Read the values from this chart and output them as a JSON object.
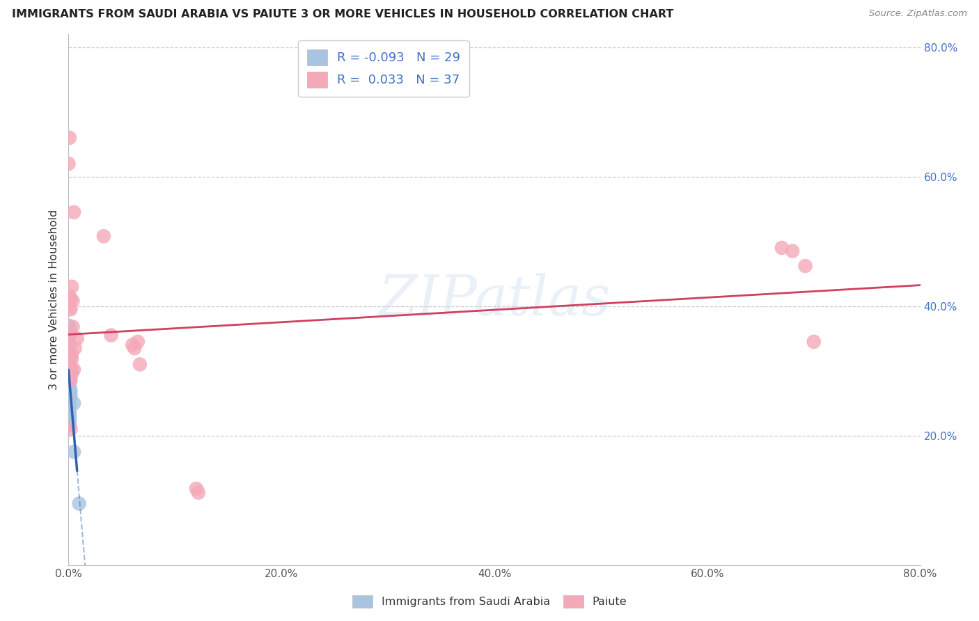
{
  "title": "IMMIGRANTS FROM SAUDI ARABIA VS PAIUTE 3 OR MORE VEHICLES IN HOUSEHOLD CORRELATION CHART",
  "source": "Source: ZipAtlas.com",
  "ylabel": "3 or more Vehicles in Household",
  "legend_label1": "Immigrants from Saudi Arabia",
  "legend_label2": "Paiute",
  "R1": -0.093,
  "N1": 29,
  "R2": 0.033,
  "N2": 37,
  "color1": "#a8c4e0",
  "color2": "#f4a8b8",
  "line1_color": "#3060b0",
  "line2_color": "#d04060",
  "watermark": "ZIPatlas",
  "blue_scatter": [
    [
      0.0,
      0.37
    ],
    [
      0.0,
      0.355
    ],
    [
      0.0,
      0.345
    ],
    [
      0.0,
      0.335
    ],
    [
      0.001,
      0.365
    ],
    [
      0.001,
      0.31
    ],
    [
      0.001,
      0.295
    ],
    [
      0.001,
      0.285
    ],
    [
      0.001,
      0.275
    ],
    [
      0.001,
      0.265
    ],
    [
      0.001,
      0.258
    ],
    [
      0.001,
      0.252
    ],
    [
      0.001,
      0.248
    ],
    [
      0.001,
      0.244
    ],
    [
      0.001,
      0.24
    ],
    [
      0.001,
      0.236
    ],
    [
      0.001,
      0.232
    ],
    [
      0.001,
      0.228
    ],
    [
      0.001,
      0.224
    ],
    [
      0.001,
      0.22
    ],
    [
      0.001,
      0.216
    ],
    [
      0.002,
      0.358
    ],
    [
      0.002,
      0.3
    ],
    [
      0.002,
      0.27
    ],
    [
      0.002,
      0.262
    ],
    [
      0.003,
      0.295
    ],
    [
      0.005,
      0.175
    ],
    [
      0.005,
      0.25
    ],
    [
      0.01,
      0.095
    ]
  ],
  "pink_scatter": [
    [
      0.0,
      0.62
    ],
    [
      0.001,
      0.66
    ],
    [
      0.001,
      0.415
    ],
    [
      0.001,
      0.398
    ],
    [
      0.001,
      0.355
    ],
    [
      0.001,
      0.338
    ],
    [
      0.001,
      0.308
    ],
    [
      0.001,
      0.298
    ],
    [
      0.001,
      0.29
    ],
    [
      0.002,
      0.41
    ],
    [
      0.002,
      0.395
    ],
    [
      0.002,
      0.325
    ],
    [
      0.002,
      0.305
    ],
    [
      0.002,
      0.285
    ],
    [
      0.002,
      0.21
    ],
    [
      0.003,
      0.43
    ],
    [
      0.003,
      0.325
    ],
    [
      0.003,
      0.318
    ],
    [
      0.003,
      0.3
    ],
    [
      0.004,
      0.408
    ],
    [
      0.004,
      0.368
    ],
    [
      0.005,
      0.545
    ],
    [
      0.005,
      0.302
    ],
    [
      0.006,
      0.335
    ],
    [
      0.008,
      0.35
    ],
    [
      0.033,
      0.508
    ],
    [
      0.04,
      0.355
    ],
    [
      0.06,
      0.34
    ],
    [
      0.062,
      0.335
    ],
    [
      0.065,
      0.345
    ],
    [
      0.067,
      0.31
    ],
    [
      0.12,
      0.118
    ],
    [
      0.122,
      0.112
    ],
    [
      0.67,
      0.49
    ],
    [
      0.68,
      0.485
    ],
    [
      0.692,
      0.462
    ],
    [
      0.7,
      0.345
    ]
  ],
  "xlim": [
    0.0,
    0.8
  ],
  "ylim": [
    0.0,
    0.82
  ],
  "xticks": [
    0.0,
    0.2,
    0.4,
    0.6,
    0.8
  ],
  "yticks": [
    0.2,
    0.4,
    0.6,
    0.8
  ],
  "blue_line_x_solid_end": 0.008,
  "blue_line_x_dash_end": 0.55
}
